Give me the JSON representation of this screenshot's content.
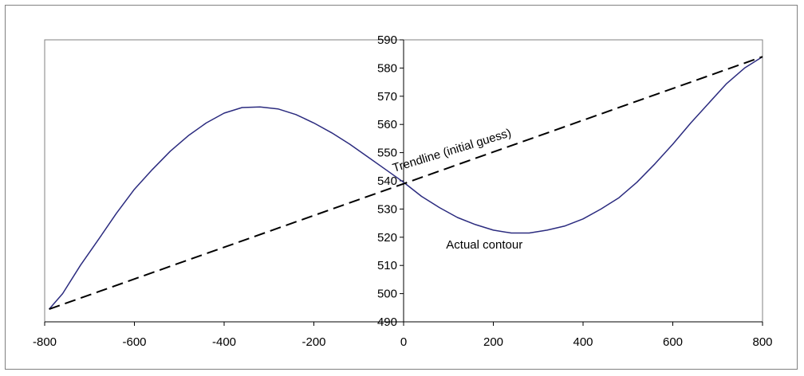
{
  "chart_data": {
    "type": "line",
    "title": "",
    "xlabel": "",
    "ylabel": "",
    "xlim": [
      -800,
      800
    ],
    "ylim": [
      490,
      590
    ],
    "x_ticks": [
      -800,
      -600,
      -400,
      -200,
      0,
      200,
      400,
      600,
      800
    ],
    "y_ticks": [
      490,
      500,
      510,
      520,
      530,
      540,
      550,
      560,
      570,
      580,
      590
    ],
    "grid": false,
    "legend": "none",
    "series": [
      {
        "name": "Actual contour",
        "style": "solid",
        "color": "#2b2b7f",
        "x": [
          -790,
          -760,
          -720,
          -680,
          -640,
          -600,
          -560,
          -520,
          -480,
          -440,
          -400,
          -360,
          -320,
          -280,
          -240,
          -200,
          -160,
          -120,
          -80,
          -40,
          0,
          40,
          80,
          120,
          160,
          200,
          240,
          280,
          320,
          360,
          400,
          440,
          480,
          520,
          560,
          600,
          640,
          680,
          720,
          760,
          800
        ],
        "y": [
          494.5,
          500.0,
          510.1,
          519.2,
          528.5,
          537.0,
          544.0,
          550.5,
          556.0,
          560.5,
          564.0,
          566.0,
          566.2,
          565.5,
          563.5,
          560.5,
          557.0,
          553.0,
          548.5,
          544.0,
          539.5,
          534.5,
          530.5,
          527.0,
          524.5,
          522.5,
          521.5,
          521.5,
          522.5,
          524.0,
          526.5,
          530.0,
          534.0,
          539.5,
          546.0,
          553.0,
          560.5,
          567.5,
          574.5,
          580.0,
          584.0
        ]
      },
      {
        "name": "Trendline (initial guess)",
        "style": "dashed",
        "color": "#000000",
        "x": [
          -790,
          800
        ],
        "y": [
          494.5,
          584.0
        ]
      }
    ],
    "annotations": [
      {
        "text": "Trendline (initial guess)",
        "x": 110,
        "y": 549.5,
        "rotation_deg": -17
      },
      {
        "text": "Actual contour",
        "x": 180,
        "y": 516
      }
    ]
  }
}
